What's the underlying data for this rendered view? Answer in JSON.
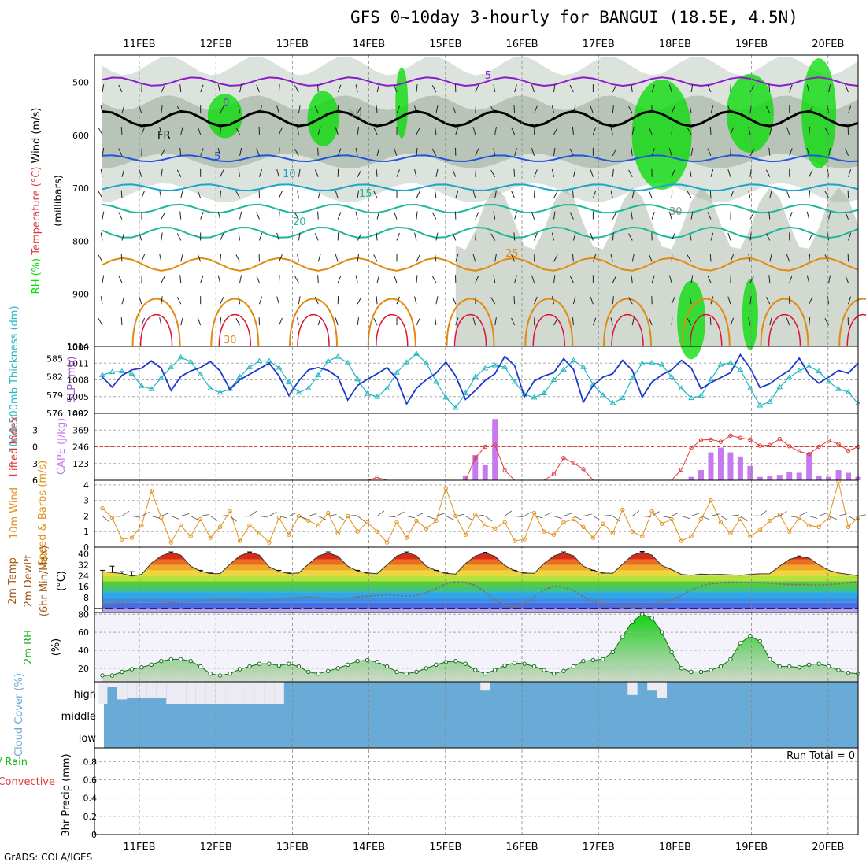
{
  "title": "GFS 0~10day 3-hourly for BANGUI (18.5E, 4.5N)",
  "credit": "GrADS: COLA/IGES",
  "dates": [
    "11FEB",
    "12FEB",
    "13FEB",
    "14FEB",
    "15FEB",
    "16FEB",
    "17FEB",
    "18FEB",
    "19FEB",
    "20FEB"
  ],
  "colors": {
    "rh_green": "#00dc00",
    "rh_gray": "#9aab9a",
    "temp_blue": "#2255dd",
    "temp_cyan": "#19a6c8",
    "temp_teal": "#1db79a",
    "temp_orange": "#e08a10",
    "temp_red": "#dd1133",
    "freezing": "#000000",
    "slp": "#1a3acc",
    "thickness": "#22b7c0",
    "cape": "#c77af0",
    "lifted": "#e03b3b",
    "wind": "#e0921a",
    "cloud": "#69aad6",
    "rh2m": "#18b41a"
  },
  "chart_data": [
    {
      "type": "heatmap",
      "name": "upper_air",
      "ylabel_parts": [
        "RH (%)",
        "Temperature (°C)",
        "Wind (m/s)"
      ],
      "ylabel2": "(millibars)",
      "yticks": [
        500,
        600,
        700,
        800,
        900,
        1000
      ],
      "ylim": [
        450,
        1000
      ],
      "contour_labels": [
        {
          "text": "-5",
          "color": "#8a1fc9"
        },
        {
          "text": "0",
          "color": "#8a1fc9"
        },
        {
          "text": "FR",
          "color": "#000000"
        },
        {
          "text": "5",
          "color": "#2255dd"
        },
        {
          "text": "10",
          "color": "#19a6c8"
        },
        {
          "text": "15",
          "color": "#1db79a"
        },
        {
          "text": "20",
          "color": "#1db79a"
        },
        {
          "text": "25",
          "color": "#e08a10"
        },
        {
          "text": "30",
          "color": "#e08a10"
        },
        {
          "text": "30",
          "color": "#8c8c8c"
        },
        {
          "text": "50",
          "color": "#8c8c8c"
        }
      ]
    },
    {
      "type": "line",
      "name": "slp_thickness",
      "ylabel_left": "1000-500mb Thickness (dm)",
      "ylabel_right": "SLP (mb)",
      "yticks_left": [
        576,
        579,
        582,
        585
      ],
      "yticks_right": [
        1002,
        1005,
        1008,
        1011,
        1014
      ],
      "ylim_left": [
        576,
        587
      ],
      "ylim_right": [
        1002,
        1014
      ],
      "x": [
        0,
        1,
        2,
        3,
        4,
        5,
        6,
        7,
        8,
        9,
        10,
        11,
        12,
        13,
        14,
        15,
        16,
        17,
        18,
        19,
        20,
        21,
        22,
        23,
        24,
        25,
        26,
        27,
        28,
        29,
        30,
        31,
        32,
        33,
        34,
        35,
        36,
        37,
        38,
        39,
        40,
        41,
        42,
        43,
        44,
        45,
        46,
        47,
        48,
        49,
        50,
        51,
        52,
        53,
        54,
        55,
        56,
        57,
        58,
        59,
        60,
        61,
        62,
        63,
        64,
        65,
        66,
        67,
        68,
        69,
        70,
        71,
        72,
        73,
        74,
        75,
        76,
        77
      ],
      "series": [
        {
          "name": "SLP",
          "values": [
            1008.5,
            1006.7,
            1008.8,
            1009.8,
            1010.1,
            1011.4,
            1010.1,
            1006.1,
            1008.6,
            1009.6,
            1010.2,
            1011.3,
            1009.6,
            1006.3,
            1008.0,
            1009.0,
            1010.0,
            1011.0,
            1008.7,
            1005.2,
            1007.8,
            1009.8,
            1010.2,
            1009.7,
            1008.5,
            1004.4,
            1007.0,
            1008.1,
            1009.1,
            1010.2,
            1008.2,
            1003.7,
            1006.5,
            1008.0,
            1009.2,
            1011.2,
            1008.7,
            1004.5,
            1006.1,
            1007.9,
            1009.1,
            1012.2,
            1010.6,
            1005.0,
            1007.8,
            1008.7,
            1009.3,
            1011.8,
            1009.9,
            1004.0,
            1007.0,
            1008.5,
            1009.1,
            1011.5,
            1009.7,
            1004.9,
            1007.6,
            1008.9,
            1009.8,
            1011.5,
            1010.1,
            1006.4,
            1007.5,
            1008.4,
            1009.3,
            1012.5,
            1010.1,
            1006.6,
            1007.3,
            1008.6,
            1009.7,
            1011.9,
            1008.9,
            1007.4,
            1008.5,
            1009.7,
            1009.2,
            1011.0
          ]
        },
        {
          "name": "Thickness",
          "values": [
            582.3,
            582.8,
            582.9,
            582.5,
            580.5,
            580.0,
            581.8,
            583.6,
            585.2,
            584.5,
            582.4,
            580.1,
            579.4,
            580.0,
            582.0,
            583.6,
            584.6,
            584.6,
            583.5,
            581.1,
            579.4,
            580.1,
            582.3,
            584.6,
            585.3,
            584.3,
            581.6,
            579.2,
            578.7,
            580.1,
            582.7,
            584.4,
            585.8,
            584.3,
            581.2,
            578.6,
            576.9,
            579.3,
            582.0,
            583.4,
            583.9,
            583.6,
            581.2,
            579.1,
            578.6,
            579.3,
            581.5,
            583.2,
            584.7,
            583.6,
            580.7,
            579.0,
            577.7,
            578.5,
            581.8,
            584.2,
            584.3,
            584.0,
            582.0,
            580.1,
            578.5,
            578.9,
            581.6,
            584.0,
            584.3,
            583.2,
            580.1,
            577.3,
            577.9,
            580.3,
            581.9,
            583.0,
            583.7,
            582.9,
            581.2,
            580.0,
            579.5,
            577.6
          ]
        }
      ]
    },
    {
      "type": "bar",
      "name": "cape_li",
      "ylabel_left": "Lifted Index",
      "ylabel_right": "CAPE (J/kg)",
      "yticks_left": [
        -3,
        0,
        3,
        6
      ],
      "yticks_right": [
        123,
        246,
        369,
        492
      ],
      "ylim_cape": [
        0,
        492
      ],
      "ylim_li": [
        6,
        -6
      ],
      "cape": [
        0,
        0,
        0,
        0,
        0,
        0,
        0,
        0,
        0,
        0,
        0,
        0,
        0,
        0,
        0,
        0,
        0,
        0,
        0,
        0,
        0,
        0,
        0,
        0,
        0,
        0,
        0,
        0,
        0,
        0,
        0,
        0,
        0,
        0,
        0,
        0,
        0,
        35,
        185,
        110,
        450,
        0,
        0,
        0,
        0,
        0,
        0,
        0,
        0,
        0,
        0,
        0,
        0,
        0,
        0,
        0,
        0,
        0,
        0,
        0,
        25,
        75,
        205,
        240,
        205,
        175,
        105,
        25,
        30,
        40,
        60,
        55,
        200,
        30,
        25,
        75,
        55,
        25
      ],
      "li": [
        9.3,
        9.6,
        9.4,
        9.5,
        9.2,
        8.8,
        9.2,
        9.5,
        9.4,
        9.2,
        8.0,
        8.3,
        9.8,
        10.3,
        9.4,
        8.2,
        6.7,
        8.9,
        10.4,
        10.6,
        10.1,
        9.0,
        7.4,
        8.3,
        9.2,
        9.4,
        8.8,
        6.2,
        5.5,
        7.7,
        9.3,
        10.0,
        9.3,
        8.2,
        6.8,
        7.2,
        7.3,
        6.9,
        2.0,
        0.0,
        -0.3,
        4.2,
        7.0,
        8.8,
        8.6,
        7.4,
        4.9,
        2.0,
        2.9,
        4.0,
        6.1,
        8.1,
        7.6,
        7.2,
        7.0,
        6.4,
        8.0,
        9.3,
        8.9,
        4.1,
        0.2,
        -1.2,
        -1.3,
        -0.9,
        -2.0,
        -1.6,
        -1.3,
        -0.2,
        -0.3,
        -1.4,
        -0.1,
        0.8,
        1.3,
        0.0,
        -1.1,
        -0.5,
        0.7,
        0.0
      ]
    },
    {
      "type": "line",
      "name": "wind10m",
      "ylabel_left": "10m Wind",
      "ylabel_right": "Speed & Barbs (m/s)",
      "yticks": [
        0,
        1,
        2,
        3,
        4
      ],
      "ylim": [
        0,
        4.3
      ],
      "values": [
        2.5,
        1.9,
        0.5,
        0.6,
        1.4,
        3.6,
        1.9,
        0.3,
        1.4,
        0.7,
        1.8,
        0.6,
        1.3,
        2.3,
        0.4,
        1.4,
        0.9,
        0.3,
        1.9,
        0.8,
        2.0,
        1.7,
        1.4,
        2.2,
        0.9,
        2.0,
        1.0,
        1.6,
        1.0,
        0.3,
        1.6,
        0.6,
        1.7,
        1.2,
        1.7,
        3.8,
        2.0,
        0.8,
        2.1,
        1.4,
        1.2,
        1.6,
        0.4,
        0.5,
        2.2,
        1.0,
        0.8,
        1.6,
        1.8,
        1.3,
        0.6,
        1.5,
        0.9,
        2.4,
        1.0,
        0.7,
        2.3,
        1.5,
        1.8,
        0.4,
        0.7,
        1.8,
        3.0,
        1.6,
        0.9,
        1.8,
        0.7,
        1.1,
        1.7,
        2.1,
        1.0,
        1.9,
        1.4,
        1.3,
        1.9,
        4.2,
        1.3,
        1.9
      ]
    },
    {
      "type": "area",
      "name": "temp2m",
      "ylabel_parts": [
        "2m Temp",
        "2m DewPt",
        "(6hr Min/Max)"
      ],
      "ylabel_right": "(°C)",
      "yticks": [
        0,
        8,
        16,
        24,
        32,
        40
      ],
      "ylim": [
        -3,
        45
      ],
      "temp": [
        27.0,
        26.3,
        25.6,
        23.8,
        25.0,
        33.2,
        38.5,
        41.2,
        39.1,
        31.0,
        27.4,
        25.6,
        25.5,
        32.5,
        38.5,
        41.3,
        39.1,
        30.5,
        27.2,
        25.6,
        26.0,
        32.5,
        38.5,
        40.8,
        38.3,
        31.0,
        27.5,
        26.0,
        25.5,
        32.0,
        38.5,
        41.0,
        38.7,
        31.0,
        27.8,
        25.7,
        25.2,
        33.0,
        38.5,
        40.8,
        38.3,
        31.5,
        27.7,
        26.0,
        25.8,
        33.0,
        38.5,
        41.0,
        38.7,
        31.0,
        28.0,
        26.0,
        25.8,
        32.5,
        39.0,
        41.5,
        39.1,
        31.5,
        28.5,
        25.0,
        24.3,
        25.2,
        24.8,
        25.0,
        24.6,
        24.3,
        25.0,
        25.4,
        25.5,
        31.0,
        36.0,
        38.0,
        37.0,
        32.0,
        28.0,
        26.0,
        25.0,
        24.0
      ],
      "dewpt": [
        3.0,
        3.5,
        4.5,
        5.0,
        5.5,
        5.3,
        4.8,
        4.6,
        4.5,
        5.0,
        5.5,
        6.0,
        6.3,
        6.5,
        6.0,
        5.5,
        5.0,
        6.0,
        7.0,
        7.5,
        8.0,
        8.5,
        8.2,
        7.5,
        7.0,
        7.5,
        8.5,
        9.0,
        9.5,
        10.0,
        9.5,
        9.0,
        9.5,
        11.5,
        14.5,
        18.0,
        19.5,
        19.0,
        17.0,
        12.0,
        6.5,
        2.5,
        1.0,
        3.0,
        8.5,
        13.5,
        16.5,
        15.5,
        13.0,
        8.5,
        5.0,
        3.5,
        2.5,
        1.5,
        1.5,
        1.5,
        2.5,
        4.5,
        6.5,
        9.5,
        13.5,
        16.5,
        18.0,
        18.8,
        19.3,
        19.0,
        19.0,
        19.0,
        18.5,
        18.0,
        17.5,
        17.5,
        17.5,
        17.0,
        17.5,
        18.0,
        19.0,
        19.5
      ],
      "max6h": [
        28,
        31,
        27,
        27,
        null,
        null,
        null,
        41.5,
        null,
        null,
        28,
        26,
        null,
        null,
        null,
        41.5,
        null,
        null,
        28,
        26,
        null,
        null,
        null,
        41.5,
        null,
        null,
        28,
        26,
        null,
        null,
        null,
        41.5,
        null,
        null,
        28,
        26,
        null,
        null,
        null,
        41.2,
        null,
        null,
        28,
        26,
        null,
        null,
        null,
        41.5,
        null,
        null,
        28,
        26,
        null,
        null,
        null,
        41.8,
        null,
        null,
        null,
        null,
        null,
        null,
        null,
        null,
        null,
        null,
        null,
        null,
        null,
        null,
        null,
        38.5,
        null,
        null,
        null,
        null,
        null,
        null
      ]
    },
    {
      "type": "area",
      "name": "rh2m",
      "ylabel_left": "2m RH",
      "ylabel_right": "(%)",
      "yticks": [
        20,
        40,
        60,
        80
      ],
      "ylim": [
        5,
        82
      ],
      "values": [
        12,
        12,
        16,
        19,
        21,
        24,
        28,
        30,
        30,
        28,
        22,
        14,
        12,
        14,
        19,
        22,
        25,
        25,
        23,
        25,
        22,
        16,
        14,
        17,
        20,
        24,
        28,
        29,
        27,
        22,
        16,
        14,
        16,
        20,
        24,
        27,
        28,
        25,
        18,
        14,
        18,
        23,
        26,
        25,
        22,
        18,
        14,
        17,
        22,
        28,
        29,
        30,
        38,
        55,
        72,
        80,
        76,
        60,
        38,
        20,
        16,
        16,
        18,
        22,
        30,
        48,
        56,
        50,
        30,
        22,
        22,
        21,
        24,
        25,
        22,
        18,
        15,
        14
      ]
    },
    {
      "type": "bar",
      "name": "cloud",
      "ylabel": "Cloud Cover (%)",
      "levels": [
        "high",
        "middle",
        "low"
      ],
      "high": [
        100,
        25,
        80,
        75,
        75,
        75,
        75,
        100,
        100,
        100,
        100,
        100,
        100,
        100,
        100,
        100,
        100,
        100,
        100,
        0,
        0,
        0,
        0,
        0,
        0,
        0,
        0,
        0,
        0,
        0,
        0,
        0,
        0,
        0,
        0,
        0,
        0,
        0,
        0,
        40,
        0,
        0,
        0,
        0,
        0,
        0,
        0,
        0,
        0,
        0,
        0,
        0,
        0,
        0,
        60,
        0,
        40,
        75,
        0,
        0,
        0,
        0,
        0,
        0,
        0,
        0,
        0,
        0,
        0,
        0,
        0,
        0,
        0,
        0,
        0,
        0,
        0,
        0
      ],
      "middle": [
        0,
        0,
        0,
        0,
        0,
        0,
        0,
        0,
        0,
        0,
        0,
        0,
        0,
        0,
        0,
        0,
        0,
        0,
        0,
        0,
        0,
        0,
        0,
        0,
        0,
        0,
        0,
        0,
        0,
        0,
        0,
        0,
        0,
        0,
        0,
        0,
        0,
        0,
        0,
        0,
        0,
        0,
        0,
        0,
        0,
        0,
        0,
        0,
        0,
        0,
        0,
        0,
        0,
        0,
        0,
        0,
        0,
        0,
        0,
        0,
        0,
        0,
        0,
        0,
        0,
        0,
        0,
        0,
        0,
        0,
        0,
        0,
        0,
        0,
        0,
        0,
        0,
        0
      ],
      "low": [
        0,
        0,
        0,
        0,
        0,
        0,
        0,
        0,
        0,
        0,
        0,
        0,
        0,
        0,
        0,
        0,
        0,
        0,
        0,
        0,
        0,
        0,
        0,
        0,
        0,
        0,
        0,
        0,
        0,
        0,
        0,
        0,
        0,
        0,
        0,
        0,
        0,
        0,
        0,
        0,
        0,
        0,
        0,
        0,
        0,
        0,
        0,
        0,
        0,
        0,
        0,
        0,
        0,
        0,
        0,
        0,
        0,
        0,
        0,
        0,
        0,
        0,
        0,
        0,
        0,
        0,
        0,
        0,
        0,
        0,
        0,
        0,
        0,
        0,
        0,
        0,
        0,
        0
      ]
    },
    {
      "type": "bar",
      "name": "precip",
      "ylabel_parts": [
        "Total / Rain",
        "Convective"
      ],
      "ylabel_right": "3hr Precip (mm)",
      "yticks": [
        0,
        0.2,
        0.4,
        0.6,
        0.8
      ],
      "ylim": [
        0,
        0.95
      ],
      "run_total": "Run Total = 0",
      "values": [
        0,
        0,
        0,
        0,
        0,
        0,
        0,
        0,
        0,
        0,
        0,
        0,
        0,
        0,
        0,
        0,
        0,
        0,
        0,
        0,
        0,
        0,
        0,
        0,
        0,
        0,
        0,
        0,
        0,
        0,
        0,
        0,
        0,
        0,
        0,
        0,
        0,
        0,
        0,
        0,
        0,
        0,
        0,
        0,
        0,
        0,
        0,
        0,
        0,
        0,
        0,
        0,
        0,
        0,
        0,
        0,
        0,
        0,
        0,
        0,
        0,
        0,
        0,
        0,
        0,
        0,
        0,
        0,
        0,
        0,
        0,
        0,
        0,
        0,
        0,
        0,
        0,
        0
      ]
    }
  ]
}
